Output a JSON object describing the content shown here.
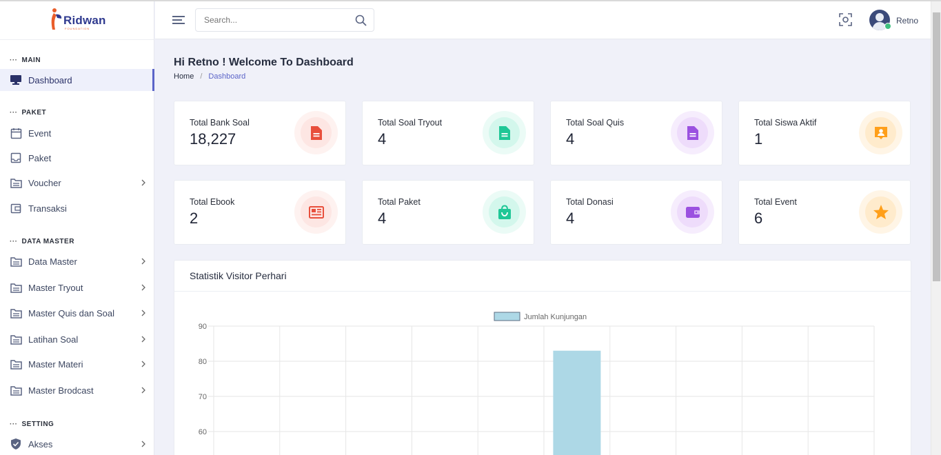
{
  "brand": {
    "name": "Ridwan",
    "sub": "FOUNDATION"
  },
  "header": {
    "search_placeholder": "Search...",
    "user_name": "Retno"
  },
  "sidebar": {
    "sections": [
      {
        "title": "MAIN"
      },
      {
        "title": "PAKET"
      },
      {
        "title": "DATA MASTER"
      },
      {
        "title": "SETTING"
      }
    ],
    "items": [
      {
        "label": "Dashboard",
        "icon": "monitor-icon"
      },
      {
        "label": "Event",
        "icon": "calendar-icon"
      },
      {
        "label": "Paket",
        "icon": "inbox-icon"
      },
      {
        "label": "Voucher",
        "icon": "folder-icon"
      },
      {
        "label": "Transaksi",
        "icon": "wallet-icon"
      },
      {
        "label": "Data Master",
        "icon": "folder-icon"
      },
      {
        "label": "Master Tryout",
        "icon": "folder-icon"
      },
      {
        "label": "Master Quis dan Soal",
        "icon": "folder-icon"
      },
      {
        "label": "Latihan Soal",
        "icon": "folder-icon"
      },
      {
        "label": "Master Materi",
        "icon": "folder-icon"
      },
      {
        "label": "Master Brodcast",
        "icon": "folder-icon"
      },
      {
        "label": "Akses",
        "icon": "shield-icon"
      }
    ]
  },
  "page": {
    "title": "Hi Retno ! Welcome To Dashboard",
    "breadcrumb": {
      "home": "Home",
      "separator": "/",
      "current": "Dashboard"
    }
  },
  "stats": [
    {
      "label": "Total Bank Soal",
      "value": "18,227",
      "icon": "document-icon",
      "color": "#e84f3c",
      "bg": "#fde6e3",
      "ring": "#fef2f0"
    },
    {
      "label": "Total Soal Tryout",
      "value": "4",
      "icon": "document-icon",
      "color": "#1fc796",
      "bg": "#d3f7ec",
      "ring": "#ebfbf6"
    },
    {
      "label": "Total Soal Quis",
      "value": "4",
      "icon": "document-icon",
      "color": "#9b51e0",
      "bg": "#eedcfb",
      "ring": "#f6edfd"
    },
    {
      "label": "Total Siswa Aktif",
      "value": "1",
      "icon": "user-card-icon",
      "color": "#ff9f1a",
      "bg": "#ffebcc",
      "ring": "#fff5e6"
    },
    {
      "label": "Total Ebook",
      "value": "2",
      "icon": "newspaper-icon",
      "color": "#e84f3c",
      "bg": "#fde6e3",
      "ring": "#fef2f0"
    },
    {
      "label": "Total Paket",
      "value": "4",
      "icon": "shopping-bag-icon",
      "color": "#1fc796",
      "bg": "#d3f7ec",
      "ring": "#ebfbf6"
    },
    {
      "label": "Total Donasi",
      "value": "4",
      "icon": "wallet-icon",
      "color": "#9b51e0",
      "bg": "#eedcfb",
      "ring": "#f6edfd"
    },
    {
      "label": "Total Event",
      "value": "6",
      "icon": "star-icon",
      "color": "#ff9f1a",
      "bg": "#ffebcc",
      "ring": "#fff5e6"
    }
  ],
  "chart": {
    "title": "Statistik Visitor Perhari",
    "legend": "Jumlah Kunjungan"
  },
  "chart_data": {
    "type": "bar",
    "title": "Statistik Visitor Perhari",
    "series": [
      {
        "name": "Jumlah Kunjungan",
        "values": [
          null,
          null,
          null,
          null,
          null,
          83,
          null,
          null,
          null,
          null
        ]
      }
    ],
    "categories": [
      "",
      "",
      "",
      "",
      "",
      "",
      "",
      "",
      "",
      ""
    ],
    "yticks": [
      90,
      80,
      70,
      60
    ],
    "ylim": [
      57,
      90
    ],
    "bar_color": "#add8e6",
    "bar_border": "#5b6b80",
    "grid": true,
    "legend_position": "top"
  }
}
